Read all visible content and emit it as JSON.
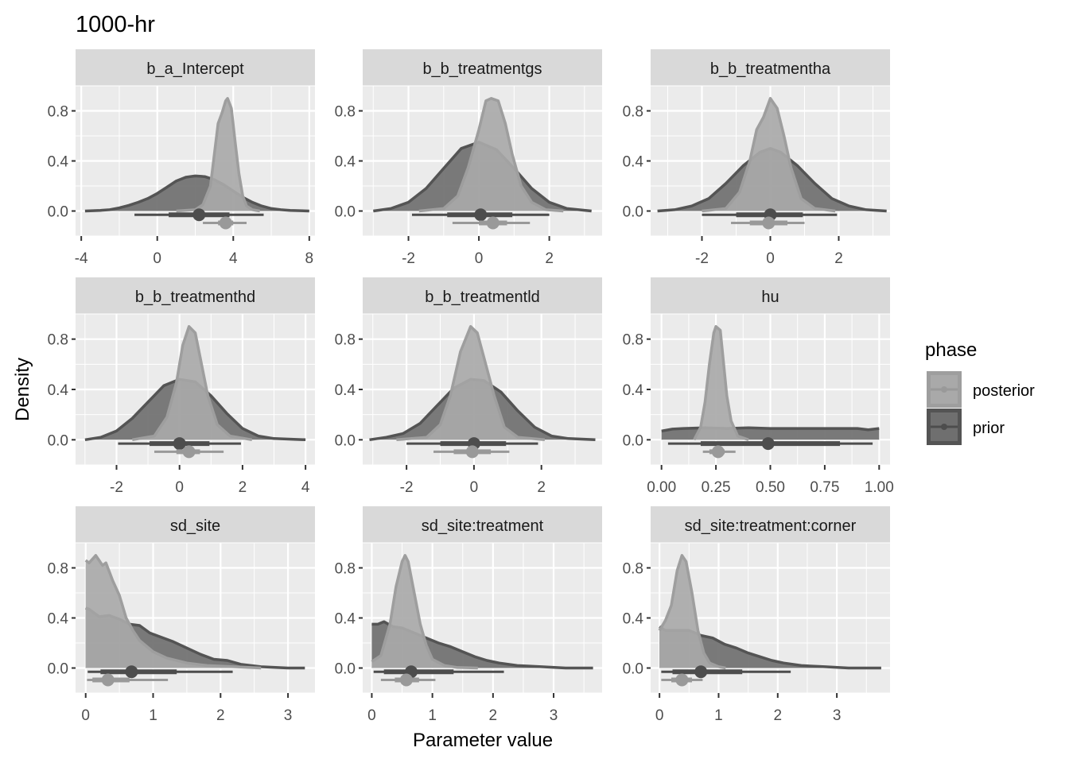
{
  "chart_data": {
    "type": "area",
    "title": "1000-hr",
    "xlabel": "Parameter value",
    "ylabel": "Density",
    "grid": true,
    "legend": {
      "title": "phase",
      "placement": "right",
      "entries": [
        {
          "name": "posterior",
          "fill": "#A9A9A9",
          "line": "#9E9E9E"
        },
        {
          "name": "prior",
          "fill": "#6F6F6F",
          "line": "#545454"
        }
      ]
    },
    "colors": {
      "panel_bg": "#EBEBEB",
      "strip_bg": "#D9D9D9",
      "grid": "#FFFFFF",
      "prior_fill": "#6F6F6F",
      "prior_line": "#545454",
      "prior_interval": "#4D4D4D",
      "posterior_fill": "#A9A9A9",
      "posterior_line": "#9E9E9E",
      "posterior_interval": "#999999"
    },
    "ylim": [
      -0.2,
      1.0
    ],
    "yticks": [
      0.0,
      0.4,
      0.8
    ],
    "ytick_labels": [
      "0.0",
      "0.4",
      "0.8"
    ],
    "panels": [
      {
        "label": "b_a_Intercept",
        "xlim": [
          -4.3,
          8.3
        ],
        "xticks": [
          -4,
          0,
          4,
          8
        ],
        "xtick_labels": [
          "-4",
          "0",
          "4",
          "8"
        ],
        "prior": {
          "x": [
            -3.8,
            -3,
            -2.5,
            -2,
            -1.5,
            -1,
            -0.5,
            0,
            0.5,
            1,
            1.5,
            2,
            2.5,
            3,
            3.5,
            4,
            4.5,
            5,
            5.5,
            6,
            6.5,
            7,
            8
          ],
          "y": [
            0.0,
            0.005,
            0.01,
            0.025,
            0.045,
            0.07,
            0.1,
            0.14,
            0.19,
            0.24,
            0.27,
            0.28,
            0.275,
            0.25,
            0.21,
            0.16,
            0.11,
            0.07,
            0.04,
            0.02,
            0.01,
            0.005,
            0.0
          ],
          "median": 2.2,
          "inner": [
            0.6,
            3.8
          ],
          "outer": [
            -1.2,
            5.6
          ]
        },
        "posterior": {
          "x": [
            1.0,
            2.0,
            2.4,
            2.8,
            3.0,
            3.2,
            3.4,
            3.6,
            3.7,
            3.9,
            4.1,
            4.3,
            4.5,
            4.7,
            5.0,
            5.4
          ],
          "y": [
            0.0,
            0.01,
            0.05,
            0.2,
            0.45,
            0.7,
            0.78,
            0.88,
            0.9,
            0.82,
            0.55,
            0.3,
            0.12,
            0.04,
            0.01,
            0.0
          ],
          "median": 3.6,
          "inner": [
            3.2,
            4.0
          ],
          "outer": [
            2.4,
            4.7
          ]
        }
      },
      {
        "label": "b_b_treatmentgs",
        "xlim": [
          -3.3,
          3.5
        ],
        "xticks": [
          -2,
          0,
          2
        ],
        "xtick_labels": [
          "-2",
          "0",
          "2"
        ],
        "prior": {
          "x": [
            -3.0,
            -2.5,
            -2.0,
            -1.5,
            -1.0,
            -0.5,
            0,
            0.5,
            1.0,
            1.5,
            2.0,
            2.5,
            3.2
          ],
          "y": [
            0.0,
            0.02,
            0.07,
            0.18,
            0.34,
            0.5,
            0.55,
            0.49,
            0.34,
            0.18,
            0.07,
            0.02,
            0.0
          ],
          "median": 0.05,
          "inner": [
            -0.9,
            0.95
          ],
          "outer": [
            -1.9,
            2.0
          ]
        },
        "posterior": {
          "x": [
            -1.7,
            -1.0,
            -0.6,
            -0.3,
            0,
            0.2,
            0.35,
            0.55,
            0.75,
            0.95,
            1.2,
            1.5,
            1.9,
            2.4
          ],
          "y": [
            0.0,
            0.02,
            0.12,
            0.35,
            0.65,
            0.88,
            0.9,
            0.88,
            0.7,
            0.45,
            0.2,
            0.07,
            0.01,
            0.0
          ],
          "median": 0.4,
          "inner": [
            0.0,
            0.8
          ],
          "outer": [
            -0.75,
            1.45
          ]
        }
      },
      {
        "label": "b_b_treatmentha",
        "xlim": [
          -3.5,
          3.5
        ],
        "xticks": [
          -2,
          0,
          2
        ],
        "xtick_labels": [
          "-2",
          "0",
          "2"
        ],
        "prior": {
          "x": [
            -3.3,
            -2.8,
            -2.3,
            -1.8,
            -1.3,
            -0.8,
            -0.3,
            0,
            0.3,
            0.8,
            1.3,
            1.8,
            2.3,
            2.8,
            3.4
          ],
          "y": [
            0.0,
            0.01,
            0.04,
            0.1,
            0.22,
            0.36,
            0.47,
            0.5,
            0.47,
            0.36,
            0.22,
            0.1,
            0.04,
            0.01,
            0.0
          ],
          "median": 0.0,
          "inner": [
            -1.0,
            0.95
          ],
          "outer": [
            -2.0,
            1.95
          ]
        },
        "posterior": {
          "x": [
            -2.0,
            -1.3,
            -0.9,
            -0.6,
            -0.4,
            -0.2,
            0,
            0.2,
            0.4,
            0.6,
            0.9,
            1.3,
            1.9
          ],
          "y": [
            0.0,
            0.02,
            0.15,
            0.4,
            0.65,
            0.75,
            0.9,
            0.82,
            0.6,
            0.35,
            0.1,
            0.02,
            0.0
          ],
          "median": -0.05,
          "inner": [
            -0.6,
            0.5
          ],
          "outer": [
            -1.15,
            1.0
          ]
        }
      },
      {
        "label": "b_b_treatmenthd",
        "xlim": [
          -3.3,
          4.3
        ],
        "xticks": [
          -2,
          0,
          2,
          4
        ],
        "xtick_labels": [
          "-2",
          "0",
          "2",
          "4"
        ],
        "prior": {
          "x": [
            -3.0,
            -2.5,
            -2.0,
            -1.5,
            -1.0,
            -0.5,
            0,
            0.5,
            1.0,
            1.5,
            2.0,
            2.5,
            3.0,
            4.0
          ],
          "y": [
            0.0,
            0.02,
            0.07,
            0.17,
            0.3,
            0.43,
            0.48,
            0.46,
            0.35,
            0.21,
            0.09,
            0.03,
            0.01,
            0.0
          ],
          "median": 0.0,
          "inner": [
            -0.95,
            0.95
          ],
          "outer": [
            -1.95,
            1.95
          ]
        },
        "posterior": {
          "x": [
            -1.5,
            -0.8,
            -0.4,
            -0.1,
            0.1,
            0.3,
            0.5,
            0.7,
            0.9,
            1.2,
            1.6,
            2.3
          ],
          "y": [
            0.0,
            0.03,
            0.18,
            0.45,
            0.75,
            0.9,
            0.85,
            0.6,
            0.35,
            0.12,
            0.03,
            0.0
          ],
          "median": 0.3,
          "inner": [
            -0.1,
            0.65
          ],
          "outer": [
            -0.8,
            1.4
          ]
        }
      },
      {
        "label": "b_b_treatmentld",
        "xlim": [
          -3.3,
          3.8
        ],
        "xticks": [
          -2,
          0,
          2
        ],
        "xtick_labels": [
          "-2",
          "0",
          "2"
        ],
        "prior": {
          "x": [
            -3.1,
            -2.6,
            -2.1,
            -1.6,
            -1.1,
            -0.6,
            -0.1,
            0.3,
            0.8,
            1.3,
            1.8,
            2.3,
            2.8,
            3.6
          ],
          "y": [
            0.0,
            0.02,
            0.05,
            0.13,
            0.27,
            0.41,
            0.48,
            0.47,
            0.38,
            0.23,
            0.1,
            0.03,
            0.01,
            0.0
          ],
          "median": 0.0,
          "inner": [
            -1.0,
            0.95
          ],
          "outer": [
            -2.0,
            1.9
          ]
        },
        "posterior": {
          "x": [
            -2.3,
            -1.4,
            -1.0,
            -0.7,
            -0.4,
            -0.1,
            0.1,
            0.3,
            0.6,
            0.9,
            1.3,
            2.1
          ],
          "y": [
            0.0,
            0.02,
            0.12,
            0.35,
            0.7,
            0.9,
            0.85,
            0.65,
            0.35,
            0.1,
            0.02,
            0.0
          ],
          "median": -0.05,
          "inner": [
            -0.6,
            0.5
          ],
          "outer": [
            -1.2,
            1.05
          ]
        }
      },
      {
        "label": "hu",
        "xlim": [
          -0.05,
          1.05
        ],
        "xticks": [
          0.0,
          0.25,
          0.5,
          0.75,
          1.0
        ],
        "xtick_labels": [
          "0.00",
          "0.25",
          "0.50",
          "0.75",
          "1.00"
        ],
        "prior": {
          "x": [
            0.0,
            0.05,
            0.1,
            0.2,
            0.3,
            0.4,
            0.5,
            0.6,
            0.7,
            0.8,
            0.9,
            0.95,
            1.0
          ],
          "y": [
            0.07,
            0.085,
            0.09,
            0.095,
            0.09,
            0.095,
            0.09,
            0.09,
            0.09,
            0.09,
            0.09,
            0.08,
            0.09
          ],
          "median": 0.49,
          "inner": [
            0.18,
            0.82
          ],
          "outer": [
            0.03,
            0.97
          ]
        },
        "posterior": {
          "x": [
            0.15,
            0.18,
            0.2,
            0.22,
            0.24,
            0.25,
            0.27,
            0.28,
            0.3,
            0.32,
            0.35,
            0.4
          ],
          "y": [
            0.0,
            0.1,
            0.3,
            0.6,
            0.85,
            0.9,
            0.87,
            0.7,
            0.35,
            0.15,
            0.03,
            0.0
          ],
          "median": 0.26,
          "inner": [
            0.22,
            0.29
          ],
          "outer": [
            0.19,
            0.34
          ]
        }
      },
      {
        "label": "sd_site",
        "xlim": [
          -0.15,
          3.4
        ],
        "xticks": [
          0,
          1,
          2,
          3
        ],
        "xtick_labels": [
          "0",
          "1",
          "2",
          "3"
        ],
        "prior": {
          "x": [
            0.0,
            0.05,
            0.2,
            0.35,
            0.5,
            0.65,
            0.8,
            0.95,
            1.1,
            1.3,
            1.5,
            1.7,
            1.9,
            2.1,
            2.3,
            2.6,
            3.0,
            3.25
          ],
          "y": [
            0.48,
            0.47,
            0.41,
            0.42,
            0.39,
            0.35,
            0.34,
            0.28,
            0.25,
            0.21,
            0.16,
            0.11,
            0.07,
            0.06,
            0.03,
            0.01,
            0.0,
            0.0
          ],
          "median": 0.68,
          "inner": [
            0.22,
            1.35
          ],
          "outer": [
            0.03,
            2.18
          ]
        },
        "posterior": {
          "x": [
            0.0,
            0.05,
            0.15,
            0.25,
            0.3,
            0.4,
            0.5,
            0.6,
            0.7,
            0.8,
            1.0,
            1.2,
            1.5,
            1.8,
            2.2,
            2.6
          ],
          "y": [
            0.86,
            0.84,
            0.9,
            0.82,
            0.84,
            0.7,
            0.58,
            0.4,
            0.3,
            0.22,
            0.13,
            0.08,
            0.04,
            0.02,
            0.01,
            0.0
          ],
          "median": 0.33,
          "inner": [
            0.1,
            0.65
          ],
          "outer": [
            0.02,
            1.22
          ]
        }
      },
      {
        "label": "sd_site:treatment",
        "xlim": [
          -0.15,
          3.8
        ],
        "xticks": [
          0,
          1,
          2,
          3
        ],
        "xtick_labels": [
          "0",
          "1",
          "2",
          "3"
        ],
        "prior": {
          "x": [
            0.0,
            0.1,
            0.2,
            0.35,
            0.5,
            0.7,
            0.9,
            1.1,
            1.3,
            1.5,
            1.7,
            1.9,
            2.1,
            2.4,
            2.8,
            3.2,
            3.65
          ],
          "y": [
            0.35,
            0.35,
            0.37,
            0.33,
            0.32,
            0.28,
            0.24,
            0.2,
            0.17,
            0.13,
            0.09,
            0.06,
            0.04,
            0.02,
            0.01,
            0.0,
            0.0
          ],
          "median": 0.65,
          "inner": [
            0.2,
            1.35
          ],
          "outer": [
            0.03,
            2.18
          ]
        },
        "posterior": {
          "x": [
            0.0,
            0.15,
            0.3,
            0.4,
            0.5,
            0.55,
            0.6,
            0.7,
            0.8,
            0.9,
            1.0,
            1.2,
            1.4,
            1.75
          ],
          "y": [
            0.05,
            0.1,
            0.35,
            0.65,
            0.85,
            0.9,
            0.85,
            0.6,
            0.35,
            0.18,
            0.07,
            0.02,
            0.005,
            0.0
          ],
          "median": 0.57,
          "inner": [
            0.38,
            0.78
          ],
          "outer": [
            0.15,
            1.05
          ]
        }
      },
      {
        "label": "sd_site:treatment:corner",
        "xlim": [
          -0.15,
          3.9
        ],
        "xticks": [
          0,
          1,
          2,
          3
        ],
        "xtick_labels": [
          "0",
          "1",
          "2",
          "3"
        ],
        "prior": {
          "x": [
            0.0,
            0.1,
            0.3,
            0.5,
            0.7,
            0.9,
            1.1,
            1.3,
            1.5,
            1.7,
            1.9,
            2.1,
            2.4,
            2.8,
            3.2,
            3.75
          ],
          "y": [
            0.33,
            0.3,
            0.3,
            0.3,
            0.26,
            0.24,
            0.19,
            0.16,
            0.12,
            0.09,
            0.06,
            0.04,
            0.02,
            0.01,
            0.0,
            0.0
          ],
          "median": 0.7,
          "inner": [
            0.22,
            1.4
          ],
          "outer": [
            0.03,
            2.22
          ]
        },
        "posterior": {
          "x": [
            0.0,
            0.1,
            0.2,
            0.3,
            0.38,
            0.45,
            0.55,
            0.65,
            0.75,
            0.85,
            1.0,
            1.12
          ],
          "y": [
            0.3,
            0.38,
            0.5,
            0.78,
            0.9,
            0.85,
            0.6,
            0.3,
            0.12,
            0.04,
            0.01,
            0.0
          ],
          "median": 0.38,
          "inner": [
            0.2,
            0.55
          ],
          "outer": [
            0.03,
            0.73
          ]
        }
      }
    ]
  }
}
